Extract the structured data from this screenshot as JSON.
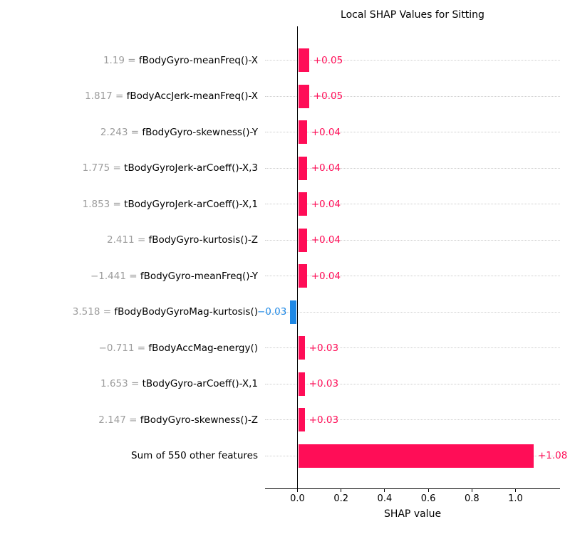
{
  "chart_data": {
    "type": "bar",
    "orientation": "horizontal",
    "title": "Local SHAP Values for Sitting",
    "xlabel": "SHAP value",
    "xlim": [
      -0.15,
      1.2
    ],
    "x_ticks": [
      0.0,
      0.2,
      0.4,
      0.6,
      0.8,
      1.0
    ],
    "x_tick_labels": [
      "0.0",
      "0.2",
      "0.4",
      "0.6",
      "0.8",
      "1.0"
    ],
    "grid": "dotted horizontal per row",
    "legend": "none",
    "colors": {
      "positive": "#ff0d57",
      "negative": "#1e88e5",
      "feature_value_text": "#9d9d9d",
      "gridline": "#cdcdcd"
    },
    "features": [
      {
        "value_prefix": "1.19 = ",
        "name": "fBodyGyro-meanFreq()-X",
        "shap": 0.05,
        "label": "+0.05"
      },
      {
        "value_prefix": "1.817 = ",
        "name": "fBodyAccJerk-meanFreq()-X",
        "shap": 0.05,
        "label": "+0.05"
      },
      {
        "value_prefix": "2.243 = ",
        "name": "fBodyGyro-skewness()-Y",
        "shap": 0.04,
        "label": "+0.04"
      },
      {
        "value_prefix": "1.775 = ",
        "name": "tBodyGyroJerk-arCoeff()-X,3",
        "shap": 0.04,
        "label": "+0.04"
      },
      {
        "value_prefix": "1.853 = ",
        "name": "tBodyGyroJerk-arCoeff()-X,1",
        "shap": 0.04,
        "label": "+0.04"
      },
      {
        "value_prefix": "2.411 = ",
        "name": "fBodyGyro-kurtosis()-Z",
        "shap": 0.04,
        "label": "+0.04"
      },
      {
        "value_prefix": "−1.441 = ",
        "name": "fBodyGyro-meanFreq()-Y",
        "shap": 0.04,
        "label": "+0.04"
      },
      {
        "value_prefix": "3.518 = ",
        "name": "fBodyBodyGyroMag-kurtosis()",
        "shap": -0.03,
        "label": "−0.03"
      },
      {
        "value_prefix": "−0.711 = ",
        "name": "fBodyAccMag-energy()",
        "shap": 0.03,
        "label": "+0.03"
      },
      {
        "value_prefix": "1.653 = ",
        "name": "tBodyGyro-arCoeff()-X,1",
        "shap": 0.03,
        "label": "+0.03"
      },
      {
        "value_prefix": "2.147 = ",
        "name": "fBodyGyro-skewness()-Z",
        "shap": 0.03,
        "label": "+0.03"
      },
      {
        "value_prefix": null,
        "name": "Sum of 550 other features",
        "shap": 1.08,
        "label": "+1.08"
      }
    ]
  }
}
